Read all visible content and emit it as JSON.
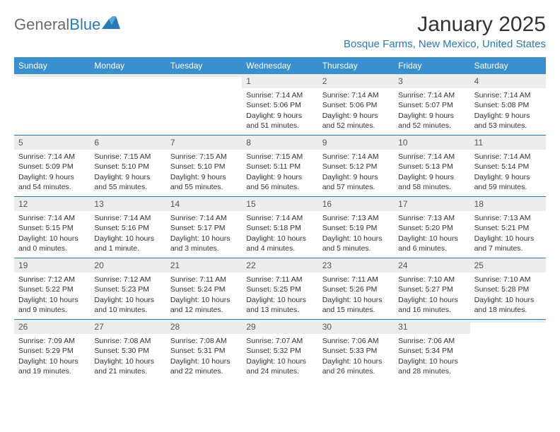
{
  "logo": {
    "general": "General",
    "blue": "Blue"
  },
  "header": {
    "month": "January 2025",
    "location": "Bosque Farms, New Mexico, United States"
  },
  "colors": {
    "brand": "#3a8fce",
    "brand_dark": "#2a7ab6",
    "text": "#333333",
    "muted": "#6b6b6b",
    "row_bg": "#ededed"
  },
  "weekdays": [
    "Sunday",
    "Monday",
    "Tuesday",
    "Wednesday",
    "Thursday",
    "Friday",
    "Saturday"
  ],
  "weeks": [
    [
      {
        "empty": true
      },
      {
        "empty": true
      },
      {
        "empty": true
      },
      {
        "day": "1",
        "sunrise": "7:14 AM",
        "sunset": "5:06 PM",
        "daylight": "9 hours and 51 minutes."
      },
      {
        "day": "2",
        "sunrise": "7:14 AM",
        "sunset": "5:06 PM",
        "daylight": "9 hours and 52 minutes."
      },
      {
        "day": "3",
        "sunrise": "7:14 AM",
        "sunset": "5:07 PM",
        "daylight": "9 hours and 52 minutes."
      },
      {
        "day": "4",
        "sunrise": "7:14 AM",
        "sunset": "5:08 PM",
        "daylight": "9 hours and 53 minutes."
      }
    ],
    [
      {
        "day": "5",
        "sunrise": "7:14 AM",
        "sunset": "5:09 PM",
        "daylight": "9 hours and 54 minutes."
      },
      {
        "day": "6",
        "sunrise": "7:15 AM",
        "sunset": "5:10 PM",
        "daylight": "9 hours and 55 minutes."
      },
      {
        "day": "7",
        "sunrise": "7:15 AM",
        "sunset": "5:10 PM",
        "daylight": "9 hours and 55 minutes."
      },
      {
        "day": "8",
        "sunrise": "7:15 AM",
        "sunset": "5:11 PM",
        "daylight": "9 hours and 56 minutes."
      },
      {
        "day": "9",
        "sunrise": "7:14 AM",
        "sunset": "5:12 PM",
        "daylight": "9 hours and 57 minutes."
      },
      {
        "day": "10",
        "sunrise": "7:14 AM",
        "sunset": "5:13 PM",
        "daylight": "9 hours and 58 minutes."
      },
      {
        "day": "11",
        "sunrise": "7:14 AM",
        "sunset": "5:14 PM",
        "daylight": "9 hours and 59 minutes."
      }
    ],
    [
      {
        "day": "12",
        "sunrise": "7:14 AM",
        "sunset": "5:15 PM",
        "daylight": "10 hours and 0 minutes."
      },
      {
        "day": "13",
        "sunrise": "7:14 AM",
        "sunset": "5:16 PM",
        "daylight": "10 hours and 1 minute."
      },
      {
        "day": "14",
        "sunrise": "7:14 AM",
        "sunset": "5:17 PM",
        "daylight": "10 hours and 3 minutes."
      },
      {
        "day": "15",
        "sunrise": "7:14 AM",
        "sunset": "5:18 PM",
        "daylight": "10 hours and 4 minutes."
      },
      {
        "day": "16",
        "sunrise": "7:13 AM",
        "sunset": "5:19 PM",
        "daylight": "10 hours and 5 minutes."
      },
      {
        "day": "17",
        "sunrise": "7:13 AM",
        "sunset": "5:20 PM",
        "daylight": "10 hours and 6 minutes."
      },
      {
        "day": "18",
        "sunrise": "7:13 AM",
        "sunset": "5:21 PM",
        "daylight": "10 hours and 7 minutes."
      }
    ],
    [
      {
        "day": "19",
        "sunrise": "7:12 AM",
        "sunset": "5:22 PM",
        "daylight": "10 hours and 9 minutes."
      },
      {
        "day": "20",
        "sunrise": "7:12 AM",
        "sunset": "5:23 PM",
        "daylight": "10 hours and 10 minutes."
      },
      {
        "day": "21",
        "sunrise": "7:11 AM",
        "sunset": "5:24 PM",
        "daylight": "10 hours and 12 minutes."
      },
      {
        "day": "22",
        "sunrise": "7:11 AM",
        "sunset": "5:25 PM",
        "daylight": "10 hours and 13 minutes."
      },
      {
        "day": "23",
        "sunrise": "7:11 AM",
        "sunset": "5:26 PM",
        "daylight": "10 hours and 15 minutes."
      },
      {
        "day": "24",
        "sunrise": "7:10 AM",
        "sunset": "5:27 PM",
        "daylight": "10 hours and 16 minutes."
      },
      {
        "day": "25",
        "sunrise": "7:10 AM",
        "sunset": "5:28 PM",
        "daylight": "10 hours and 18 minutes."
      }
    ],
    [
      {
        "day": "26",
        "sunrise": "7:09 AM",
        "sunset": "5:29 PM",
        "daylight": "10 hours and 19 minutes."
      },
      {
        "day": "27",
        "sunrise": "7:08 AM",
        "sunset": "5:30 PM",
        "daylight": "10 hours and 21 minutes."
      },
      {
        "day": "28",
        "sunrise": "7:08 AM",
        "sunset": "5:31 PM",
        "daylight": "10 hours and 22 minutes."
      },
      {
        "day": "29",
        "sunrise": "7:07 AM",
        "sunset": "5:32 PM",
        "daylight": "10 hours and 24 minutes."
      },
      {
        "day": "30",
        "sunrise": "7:06 AM",
        "sunset": "5:33 PM",
        "daylight": "10 hours and 26 minutes."
      },
      {
        "day": "31",
        "sunrise": "7:06 AM",
        "sunset": "5:34 PM",
        "daylight": "10 hours and 28 minutes."
      },
      {
        "empty": true
      }
    ]
  ],
  "labels": {
    "sunrise": "Sunrise:",
    "sunset": "Sunset:",
    "daylight": "Daylight:"
  }
}
